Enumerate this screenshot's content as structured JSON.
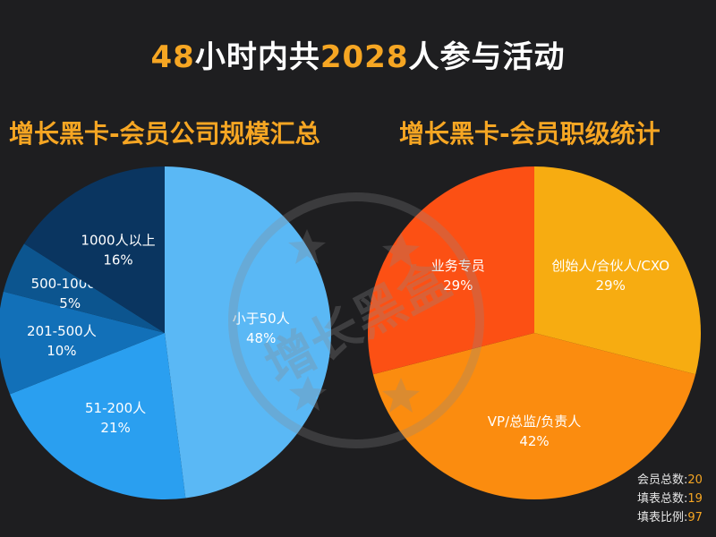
{
  "title": {
    "part1": "48",
    "part2": "小时内共",
    "part3": "2028",
    "part4": "人参与活动"
  },
  "watermark": {
    "text": "增长黑盒",
    "color": "#8a8a8a"
  },
  "stats": [
    {
      "label": "会员总数:",
      "value": "20"
    },
    {
      "label": "填表总数:",
      "value": "19"
    },
    {
      "label": "填表比例:",
      "value": "97"
    }
  ],
  "chart_data": [
    {
      "type": "pie",
      "title": "增长黑卡-会员公司规模汇总",
      "slices": [
        {
          "label": "小于50人",
          "value": 48,
          "pct": "48%",
          "color": "#5ab8f5"
        },
        {
          "label": "51-200人",
          "value": 21,
          "pct": "21%",
          "color": "#2a9ff0"
        },
        {
          "label": "201-500人",
          "value": 10,
          "pct": "10%",
          "color": "#1270b8"
        },
        {
          "label": "500-1000人",
          "value": 5,
          "pct": "5%",
          "color": "#0c558f"
        },
        {
          "label": "1000人以上",
          "value": 16,
          "pct": "16%",
          "color": "#0a3560"
        }
      ]
    },
    {
      "type": "pie",
      "title": "增长黑卡-会员职级统计",
      "slices": [
        {
          "label": "创始人/合伙人/CXO",
          "value": 29,
          "pct": "29%",
          "color": "#f7ac11"
        },
        {
          "label": "VP/总监/负责人",
          "value": 42,
          "pct": "42%",
          "color": "#fb8c0f"
        },
        {
          "label": "业务专员",
          "value": 29,
          "pct": "29%",
          "color": "#fc5014"
        }
      ]
    }
  ]
}
